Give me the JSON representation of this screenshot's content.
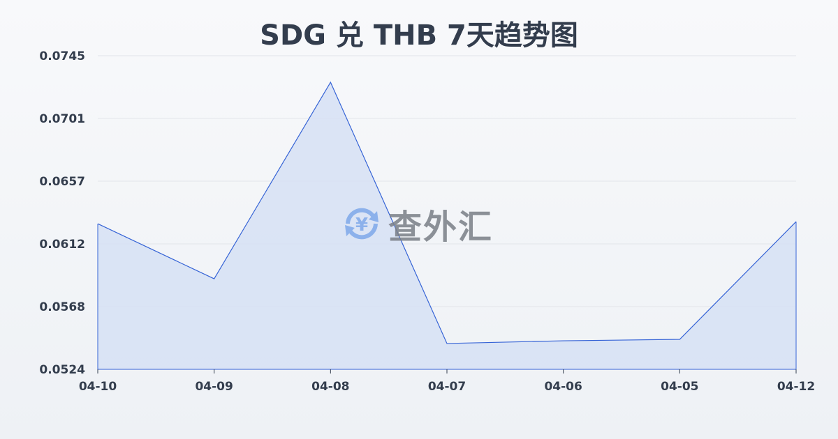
{
  "chart_data": {
    "type": "area",
    "title": "SDG 兑 THB 7天趋势图",
    "categories": [
      "04-10",
      "04-09",
      "04-08",
      "04-07",
      "04-06",
      "04-05",
      "04-12"
    ],
    "series": [
      {
        "values": [
          0.06266,
          0.05878,
          0.07263,
          0.05422,
          0.05441,
          0.05451,
          0.06281
        ]
      }
    ],
    "yticks": [
      "0.0745",
      "0.0701",
      "0.0657",
      "0.0612",
      "0.0568",
      "0.0524"
    ],
    "ylim": [
      0.0524,
      0.0745
    ],
    "grid": true,
    "line_color": "#3563d6",
    "fill_color": "#d6e0f5"
  },
  "watermark": {
    "text": "查外汇",
    "icon": "yen-exchange-icon"
  }
}
